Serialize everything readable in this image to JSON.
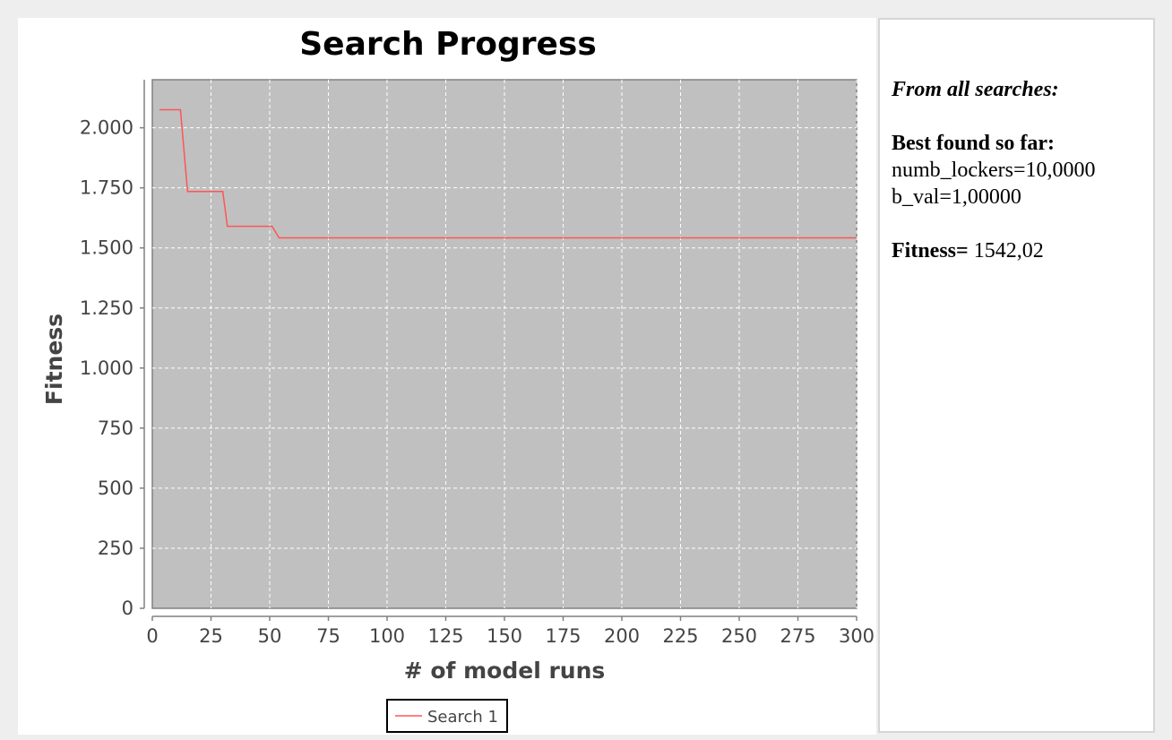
{
  "chart_data": {
    "type": "line",
    "title": "Search Progress",
    "xlabel": "# of model runs",
    "ylabel": "Fitness",
    "xlim": [
      0,
      300
    ],
    "ylim": [
      0,
      2200
    ],
    "x_ticks": [
      0,
      25,
      50,
      75,
      100,
      125,
      150,
      175,
      200,
      225,
      250,
      275,
      300
    ],
    "x_tick_labels": [
      "0",
      "25",
      "50",
      "75",
      "100",
      "125",
      "150",
      "175",
      "200",
      "225",
      "250",
      "275",
      "300"
    ],
    "y_ticks": [
      0,
      250,
      500,
      750,
      1000,
      1250,
      1500,
      1750,
      2000
    ],
    "y_tick_labels": [
      "0",
      "250",
      "500",
      "750",
      "1.000",
      "1.250",
      "1.500",
      "1.750",
      "2.000"
    ],
    "grid": true,
    "legend_position": "bottom-center",
    "series": [
      {
        "name": "Search 1",
        "color": "#ff5555",
        "x": [
          3,
          12,
          15,
          30,
          32,
          51,
          54,
          300
        ],
        "y": [
          2075,
          2075,
          1735,
          1735,
          1590,
          1590,
          1542,
          1542
        ]
      }
    ]
  },
  "info": {
    "heading": "From all searches:",
    "best_label": "Best found so far:",
    "params": [
      "numb_lockers=10,0000",
      "b_val=1,00000"
    ],
    "fitness_label": "Fitness=",
    "fitness_value": " 1542,02"
  }
}
